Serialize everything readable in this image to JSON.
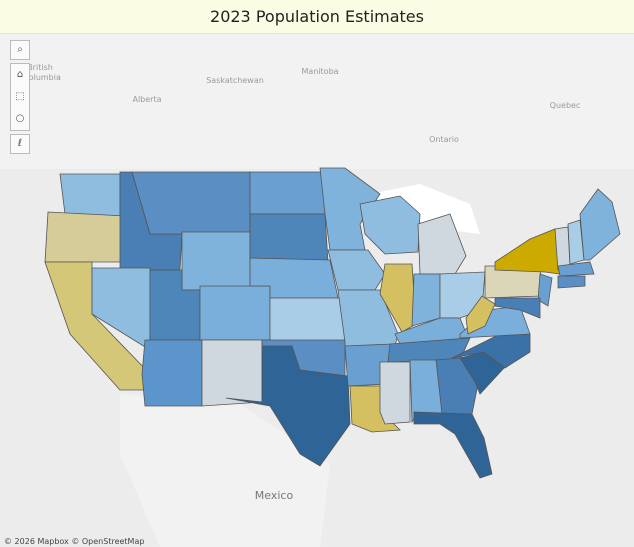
{
  "header": {
    "title": "2023 Population Estimates"
  },
  "map": {
    "labels": [
      "British",
      "Columbia",
      "Alberta",
      "Saskatchewan",
      "Manitoba",
      "Ontario",
      "Quebec",
      "Mexico"
    ],
    "attribution": "© 2026 Mapbox © OpenStreetMap"
  }
}
